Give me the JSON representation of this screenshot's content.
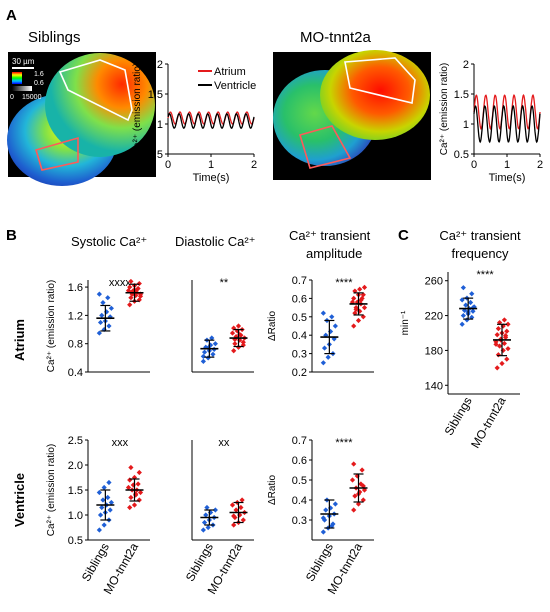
{
  "panel_labels": {
    "a": "A",
    "b": "B",
    "c": "C"
  },
  "panel_a": {
    "left_title": "Siblings",
    "right_title": "MO-tnnt2a",
    "scale_bar": "30 µm",
    "colorbar": {
      "max": "1.6",
      "min": "0.6",
      "low": "0",
      "high": "15000"
    },
    "trace_ylabel": "Ca²⁺ (emission ratio)",
    "trace_xlabel": "Time(s)",
    "legend": {
      "atrium": "Atrium",
      "ventricle": "Ventricle"
    },
    "colors": {
      "atrium": "#e41a1c",
      "ventricle": "#000000"
    }
  },
  "panel_b": {
    "col_titles": [
      "Systolic Ca²⁺",
      "Diastolic Ca²⁺",
      "Ca²⁺ transient",
      "amplitude"
    ],
    "row_labels": [
      "Atrium",
      "Ventricle"
    ],
    "ylabel_ratio": "Ca²⁺ (emission ratio)",
    "ylabel_delta": "ΔRatio",
    "groups": [
      "Siblings",
      "MO-tnnt2a"
    ]
  },
  "panel_c": {
    "title_line1": "Ca²⁺ transient",
    "title_line2": "frequency",
    "ylabel": "min⁻¹",
    "groups": [
      "Siblings",
      "MO-tnnt2a"
    ]
  },
  "chart_data": [
    {
      "id": "a_siblings",
      "type": "line",
      "xlim": [
        0,
        2
      ],
      "ylim": [
        0.5,
        2
      ],
      "xticks": [
        0,
        1,
        2
      ],
      "yticks": [
        0.5,
        1,
        1.5,
        2
      ],
      "series": [
        {
          "name": "Atrium",
          "color": "#e41a1c",
          "mean": 1.1,
          "amp": 0.1,
          "cycles": 9
        },
        {
          "name": "Ventricle",
          "color": "#000000",
          "mean": 1.05,
          "amp": 0.12,
          "cycles": 9
        }
      ]
    },
    {
      "id": "a_mo",
      "type": "line",
      "xlim": [
        0,
        2
      ],
      "ylim": [
        0.5,
        2
      ],
      "xticks": [
        0,
        1,
        2
      ],
      "yticks": [
        0.5,
        1,
        1.5,
        2
      ],
      "series": [
        {
          "name": "Atrium",
          "color": "#e41a1c",
          "mean": 1.2,
          "amp": 0.28,
          "cycles": 7
        },
        {
          "name": "Ventricle",
          "color": "#000000",
          "mean": 1.0,
          "amp": 0.3,
          "cycles": 7
        }
      ]
    },
    {
      "id": "atrium_systolic",
      "type": "scatter",
      "ylim": [
        0.4,
        1.7
      ],
      "yticks": [
        "0.4",
        "0.8",
        "1.2",
        "1.6"
      ],
      "significance": "xxxx",
      "groups": [
        {
          "name": "Siblings",
          "color": "#1f5fd6",
          "mean": 1.16,
          "sd": 0.18,
          "values": [
            0.95,
            1.0,
            1.05,
            1.1,
            1.12,
            1.18,
            1.2,
            1.25,
            1.3,
            1.38,
            1.45,
            1.5
          ]
        },
        {
          "name": "MO-tnnt2a",
          "color": "#e41a1c",
          "mean": 1.52,
          "sd": 0.12,
          "values": [
            1.35,
            1.4,
            1.42,
            1.45,
            1.48,
            1.5,
            1.5,
            1.52,
            1.55,
            1.55,
            1.58,
            1.6,
            1.62,
            1.65,
            1.68,
            1.55,
            1.47,
            1.53
          ]
        }
      ]
    },
    {
      "id": "atrium_diastolic",
      "type": "scatter",
      "ylim": [
        0.4,
        1.7
      ],
      "yticks": [],
      "significance": "**",
      "groups": [
        {
          "name": "Siblings",
          "color": "#1f5fd6",
          "mean": 0.73,
          "sd": 0.12,
          "values": [
            0.55,
            0.6,
            0.65,
            0.68,
            0.7,
            0.72,
            0.75,
            0.78,
            0.8,
            0.85,
            0.88,
            0.62,
            0.74
          ]
        },
        {
          "name": "MO-tnnt2a",
          "color": "#e41a1c",
          "mean": 0.88,
          "sd": 0.12,
          "values": [
            0.7,
            0.75,
            0.78,
            0.8,
            0.85,
            0.88,
            0.9,
            0.92,
            0.95,
            0.98,
            1.0,
            1.02,
            1.05,
            0.82,
            0.86,
            0.93
          ]
        }
      ]
    },
    {
      "id": "atrium_amplitude",
      "type": "scatter",
      "ylim": [
        0.2,
        0.7
      ],
      "yticks": [
        "0.2",
        "0.3",
        "0.4",
        "0.5",
        "0.6",
        "0.7"
      ],
      "significance": "****",
      "groups": [
        {
          "name": "Siblings",
          "color": "#1f5fd6",
          "mean": 0.39,
          "sd": 0.09,
          "values": [
            0.25,
            0.28,
            0.3,
            0.33,
            0.35,
            0.38,
            0.4,
            0.42,
            0.45,
            0.48,
            0.5,
            0.52
          ]
        },
        {
          "name": "MO-tnnt2a",
          "color": "#e41a1c",
          "mean": 0.57,
          "sd": 0.06,
          "values": [
            0.45,
            0.48,
            0.5,
            0.52,
            0.53,
            0.55,
            0.55,
            0.57,
            0.58,
            0.58,
            0.6,
            0.6,
            0.62,
            0.62,
            0.64,
            0.65,
            0.66,
            0.54,
            0.59
          ]
        }
      ]
    },
    {
      "id": "ventricle_systolic",
      "type": "scatter",
      "ylim": [
        0.5,
        2.5
      ],
      "yticks": [
        "0.5",
        "1.0",
        "1.5",
        "2.0",
        "2.5"
      ],
      "significance": "xxx",
      "groups": [
        {
          "name": "Siblings",
          "color": "#1f5fd6",
          "mean": 1.2,
          "sd": 0.3,
          "values": [
            0.7,
            0.8,
            0.9,
            1.0,
            1.05,
            1.1,
            1.15,
            1.2,
            1.25,
            1.3,
            1.35,
            1.45,
            1.55,
            1.65
          ]
        },
        {
          "name": "MO-tnnt2a",
          "color": "#e41a1c",
          "mean": 1.5,
          "sd": 0.22,
          "values": [
            1.15,
            1.2,
            1.3,
            1.35,
            1.4,
            1.45,
            1.5,
            1.5,
            1.55,
            1.6,
            1.62,
            1.7,
            1.75,
            1.85,
            1.95,
            1.42
          ]
        }
      ]
    },
    {
      "id": "ventricle_diastolic",
      "type": "scatter",
      "ylim": [
        0.5,
        2.5
      ],
      "yticks": [],
      "significance": "xx",
      "groups": [
        {
          "name": "Siblings",
          "color": "#1f5fd6",
          "mean": 0.95,
          "sd": 0.15,
          "values": [
            0.7,
            0.75,
            0.8,
            0.85,
            0.9,
            0.95,
            1.0,
            1.05,
            1.1,
            1.15
          ]
        },
        {
          "name": "MO-tnnt2a",
          "color": "#e41a1c",
          "mean": 1.05,
          "sd": 0.2,
          "values": [
            0.8,
            0.85,
            0.9,
            0.95,
            1.0,
            1.05,
            1.1,
            1.15,
            1.2,
            1.25,
            1.3,
            0.98
          ]
        }
      ]
    },
    {
      "id": "ventricle_amplitude",
      "type": "scatter",
      "ylim": [
        0.2,
        0.7
      ],
      "yticks": [
        "0.3",
        "0.4",
        "0.5",
        "0.6",
        "0.7"
      ],
      "significance": "****",
      "groups": [
        {
          "name": "Siblings",
          "color": "#1f5fd6",
          "mean": 0.33,
          "sd": 0.07,
          "values": [
            0.24,
            0.26,
            0.28,
            0.3,
            0.32,
            0.33,
            0.35,
            0.36,
            0.38,
            0.4,
            0.27,
            0.31
          ]
        },
        {
          "name": "MO-tnnt2a",
          "color": "#e41a1c",
          "mean": 0.46,
          "sd": 0.07,
          "values": [
            0.35,
            0.38,
            0.4,
            0.42,
            0.44,
            0.45,
            0.46,
            0.48,
            0.5,
            0.52,
            0.55,
            0.58,
            0.43,
            0.47
          ]
        }
      ]
    },
    {
      "id": "frequency",
      "type": "scatter",
      "ylim": [
        130,
        270
      ],
      "yticks": [
        "140",
        "180",
        "220",
        "260"
      ],
      "significance": "****",
      "groups": [
        {
          "name": "Siblings",
          "color": "#1f5fd6",
          "mean": 228,
          "sd": 12,
          "values": [
            210,
            215,
            218,
            220,
            222,
            225,
            226,
            228,
            230,
            232,
            235,
            238,
            240,
            245,
            252,
            224,
            229
          ]
        },
        {
          "name": "MO-tnnt2a",
          "color": "#e41a1c",
          "mean": 192,
          "sd": 18,
          "values": [
            160,
            165,
            170,
            175,
            180,
            182,
            185,
            188,
            190,
            192,
            195,
            198,
            200,
            202,
            205,
            208,
            210,
            212,
            215,
            187,
            193,
            197
          ]
        }
      ]
    }
  ]
}
